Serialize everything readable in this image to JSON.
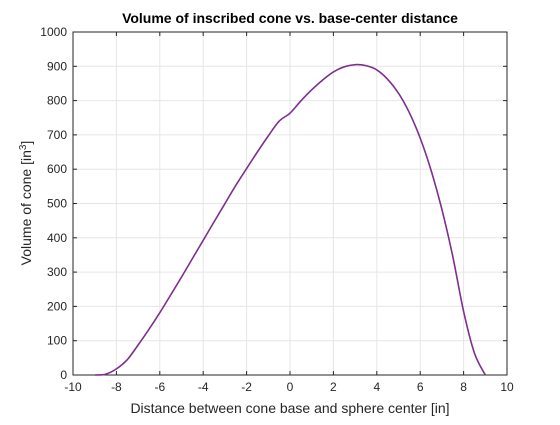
{
  "chart_data": {
    "type": "line",
    "title": "Volume of inscribed cone vs. base-center distance",
    "xlabel": "Distance between cone base and sphere center [in]",
    "ylabel": "Volume of cone [in",
    "ylabel_sup": "3",
    "ylabel_end": "]",
    "xlim": [
      -10,
      10
    ],
    "ylim": [
      0,
      1000
    ],
    "grid": true,
    "xticks": [
      -10,
      -8,
      -6,
      -4,
      -2,
      0,
      2,
      4,
      6,
      8,
      10
    ],
    "yticks": [
      0,
      100,
      200,
      300,
      400,
      500,
      600,
      700,
      800,
      900,
      1000
    ],
    "x_tick_labels": [
      "-10",
      "-8",
      "-6",
      "-4",
      "-2",
      "0",
      "2",
      "4",
      "6",
      "8",
      "10"
    ],
    "y_tick_labels": [
      "0",
      "100",
      "200",
      "300",
      "400",
      "500",
      "600",
      "700",
      "800",
      "900",
      "1000"
    ],
    "series_color": "#7E2F8E",
    "series": [
      {
        "x": [
          -9,
          -8.5,
          -8,
          -7.5,
          -7,
          -6.5,
          -6,
          -5.5,
          -5,
          -4.5,
          -4,
          -3.5,
          -3,
          -2.5,
          -2,
          -1.5,
          -1,
          -0.5,
          0,
          0.5,
          1,
          1.5,
          2,
          2.5,
          3,
          3.5,
          4,
          4.5,
          5,
          5.5,
          6,
          6.5,
          7,
          7.5,
          8,
          8.5,
          9
        ],
        "y": [
          0,
          2.3,
          17.8,
          44.6,
          87.4,
          133.2,
          181.7,
          233.2,
          285.4,
          339.2,
          392.7,
          446.4,
          499.5,
          552.6,
          602.0,
          650.5,
          697.1,
          740.1,
          763.4,
          799.1,
          831.4,
          859.8,
          883.7,
          898.5,
          904.8,
          901.9,
          889.5,
          862.1,
          821.6,
          764.8,
          690.6,
          597.0,
          482.6,
          346.1,
          185.4,
          63.9,
          0
        ]
      }
    ]
  }
}
